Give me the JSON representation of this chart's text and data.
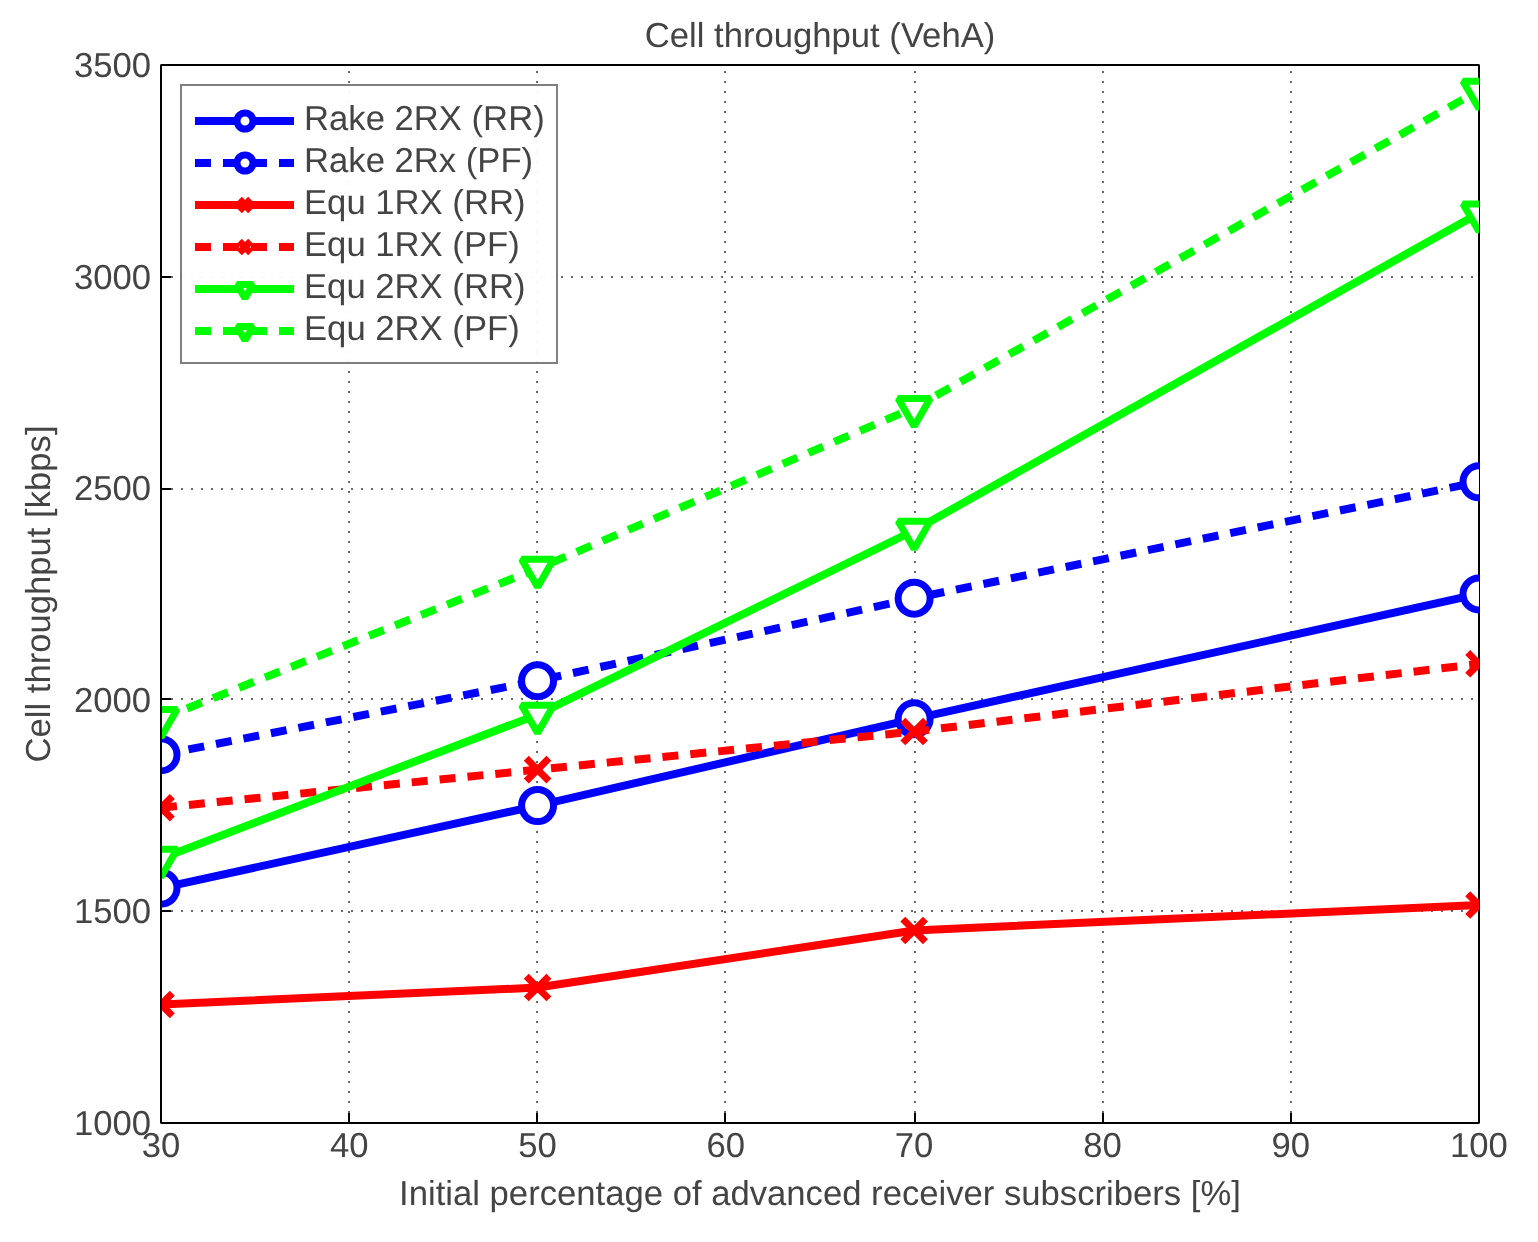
{
  "chart_data": {
    "type": "line",
    "title": "Cell throughput (VehA)",
    "xlabel": "Initial percentage of advanced receiver subscribers [%]",
    "ylabel": "Cell throughput [kbps]",
    "x": [
      30,
      50,
      70,
      100
    ],
    "xlim": [
      30,
      100
    ],
    "xticks": [
      30,
      40,
      50,
      60,
      70,
      80,
      90,
      100
    ],
    "ylim": [
      1000,
      3500
    ],
    "yticks": [
      1000,
      1500,
      2000,
      2500,
      3000,
      3500
    ],
    "grid": true,
    "legend": "top left",
    "series": [
      {
        "name": "Rake 2RX (RR)",
        "color": "#0000ff",
        "marker": "circle",
        "line_style": "solid",
        "values": [
          1555,
          1750,
          1955,
          2250
        ]
      },
      {
        "name": "Rake 2Rx (PF)",
        "color": "#0000ff",
        "marker": "circle",
        "line_style": "dashed",
        "values": [
          1870,
          2045,
          2240,
          2515
        ]
      },
      {
        "name": "Equ 1RX (RR)",
        "color": "#ff0000",
        "marker": "cross",
        "line_style": "solid",
        "values": [
          1280,
          1320,
          1455,
          1515
        ]
      },
      {
        "name": "Equ 1RX (PF)",
        "color": "#ff0000",
        "marker": "cross",
        "line_style": "dashed",
        "values": [
          1745,
          1835,
          1925,
          2085
        ]
      },
      {
        "name": "Equ 2RX (RR)",
        "color": "#00ff00",
        "marker": "triangle",
        "line_style": "solid",
        "values": [
          1625,
          1965,
          2400,
          3150
        ]
      },
      {
        "name": "Equ 2RX (PF)",
        "color": "#00ff00",
        "marker": "triangle",
        "line_style": "dashed",
        "values": [
          1955,
          2310,
          2690,
          3440
        ]
      }
    ]
  }
}
